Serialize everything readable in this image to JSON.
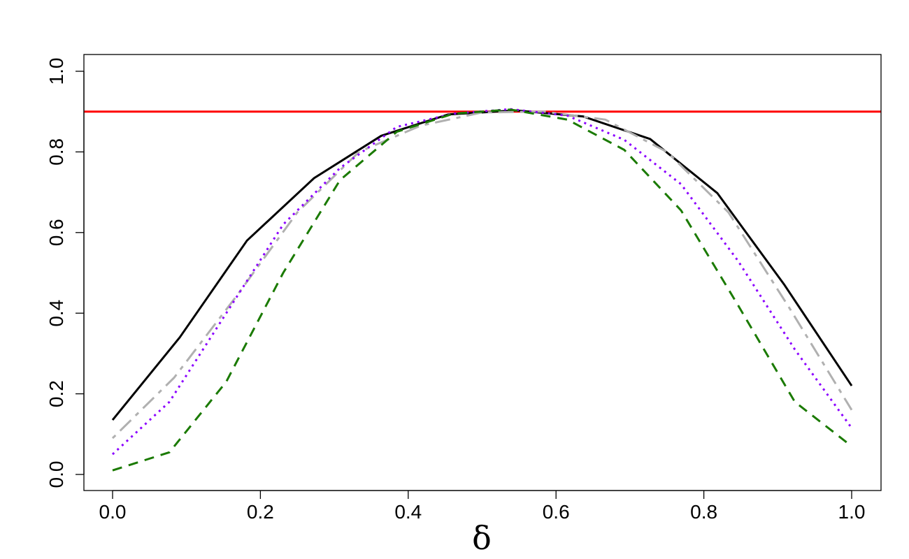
{
  "chart_data": {
    "type": "line",
    "title": "",
    "xlabel": "δ",
    "ylabel": "",
    "xlim": [
      0.0,
      1.0
    ],
    "ylim": [
      0.0,
      1.0
    ],
    "x_ticks": [
      "0.0",
      "0.2",
      "0.4",
      "0.6",
      "0.8",
      "1.0"
    ],
    "y_ticks": [
      "0.0",
      "0.2",
      "0.4",
      "0.6",
      "0.8",
      "1.0"
    ],
    "grid": false,
    "legend": "none",
    "reference_line": {
      "y": 0.9,
      "color": "#ff0000"
    },
    "series": [
      {
        "color": "#000000",
        "style": "solid",
        "x": [
          0.0,
          0.0909,
          0.1818,
          0.2727,
          0.3636,
          0.4545,
          0.5455,
          0.6364,
          0.7273,
          0.8182,
          0.9091,
          1.0
        ],
        "y": [
          0.135,
          0.34,
          0.58,
          0.735,
          0.84,
          0.893,
          0.903,
          0.888,
          0.832,
          0.698,
          0.47,
          0.22
        ]
      },
      {
        "color": "#b0b0b0",
        "style": "dashdot",
        "x": [
          0.0,
          0.0833,
          0.1667,
          0.25,
          0.3333,
          0.4167,
          0.5,
          0.5833,
          0.6667,
          0.75,
          0.8333,
          0.9167,
          1.0
        ],
        "y": [
          0.09,
          0.24,
          0.44,
          0.65,
          0.8,
          0.865,
          0.898,
          0.9,
          0.88,
          0.8,
          0.65,
          0.41,
          0.16
        ]
      },
      {
        "color": "#8b00ff",
        "style": "dotted",
        "x": [
          0.0,
          0.0769,
          0.1538,
          0.2308,
          0.3077,
          0.3846,
          0.4615,
          0.5385,
          0.6154,
          0.6923,
          0.7692,
          0.8462,
          0.9231,
          1.0
        ],
        "y": [
          0.05,
          0.18,
          0.4,
          0.62,
          0.76,
          0.862,
          0.895,
          0.906,
          0.89,
          0.83,
          0.72,
          0.53,
          0.31,
          0.115
        ]
      },
      {
        "color": "#1a7a00",
        "style": "dashed",
        "x": [
          0.0,
          0.0769,
          0.1538,
          0.2308,
          0.3077,
          0.3846,
          0.4615,
          0.5385,
          0.6154,
          0.6923,
          0.7692,
          0.8462,
          0.9231,
          1.0
        ],
        "y": [
          0.01,
          0.055,
          0.23,
          0.5,
          0.73,
          0.85,
          0.895,
          0.905,
          0.88,
          0.805,
          0.655,
          0.42,
          0.18,
          0.07
        ]
      }
    ]
  }
}
